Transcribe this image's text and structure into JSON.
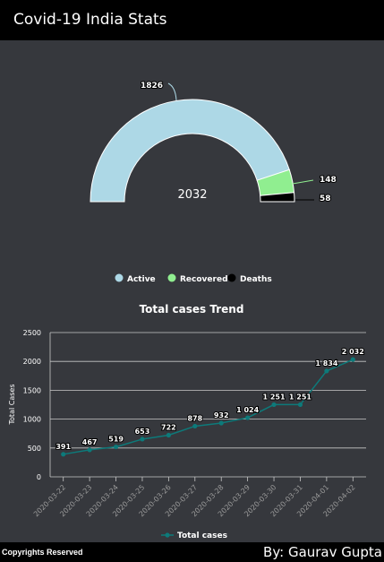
{
  "app": {
    "title": "Covid-19 India Stats"
  },
  "donut": {
    "center_label": "2032",
    "segments": [
      {
        "name": "Active",
        "value": 1826,
        "label": "1826",
        "color": "#add8e6"
      },
      {
        "name": "Recovered",
        "value": 148,
        "label": "148",
        "color": "#90ee90"
      },
      {
        "name": "Deaths",
        "value": 58,
        "label": "58",
        "color": "#000000"
      }
    ]
  },
  "chart_data": {
    "type": "line",
    "title": "Total cases Trend",
    "ylabel": "Total Cases",
    "xlabel": "",
    "x": [
      "2020-03-22",
      "2020-03-23",
      "2020-03-24",
      "2020-03-25",
      "2020-03-26",
      "2020-03-27",
      "2020-03-28",
      "2020-03-29",
      "2020-03-30",
      "2020-03-31",
      "2020-04-01",
      "2020-04-02"
    ],
    "series": [
      {
        "name": "Total cases",
        "values": [
          391,
          467,
          519,
          653,
          722,
          878,
          932,
          1024,
          1251,
          1251,
          1834,
          2032
        ],
        "labels": [
          "391",
          "467",
          "519",
          "653",
          "722",
          "878",
          "932",
          "1 024",
          "1 251",
          "1 251",
          "1 834",
          "2 032"
        ],
        "color": "#0d7a7a"
      }
    ],
    "ylim": [
      0,
      2500
    ],
    "yticks": [
      "0",
      "500",
      "1000",
      "1500",
      "2000",
      "2500"
    ],
    "grid": true,
    "legend": "bottom"
  },
  "footer": {
    "left": "Copyrights Reserved",
    "right": "By: Gaurav Gupta"
  }
}
